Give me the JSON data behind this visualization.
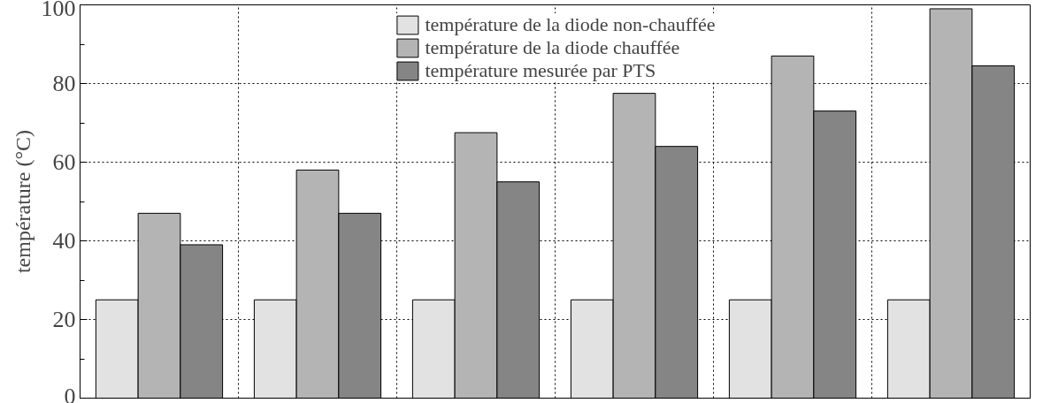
{
  "chart_data": {
    "type": "bar",
    "ylabel": "température (°C)",
    "categories": [
      null,
      null,
      null,
      null,
      null,
      null
    ],
    "series": [
      {
        "name": "température de la diode non-chauffée",
        "color": "#e2e2e2",
        "values": [
          25,
          25,
          25,
          25,
          25,
          25
        ]
      },
      {
        "name": "température de la diode chauffée",
        "color": "#b4b4b4",
        "values": [
          47,
          58,
          67.5,
          77.5,
          87,
          99
        ]
      },
      {
        "name": "température mesurée par PTS",
        "color": "#858585",
        "values": [
          39,
          47,
          55,
          64,
          73,
          84.5
        ]
      }
    ],
    "ylim": [
      0,
      100
    ],
    "yticks": [
      0,
      20,
      40,
      60,
      80,
      100
    ],
    "grid": true,
    "legend": "top"
  }
}
